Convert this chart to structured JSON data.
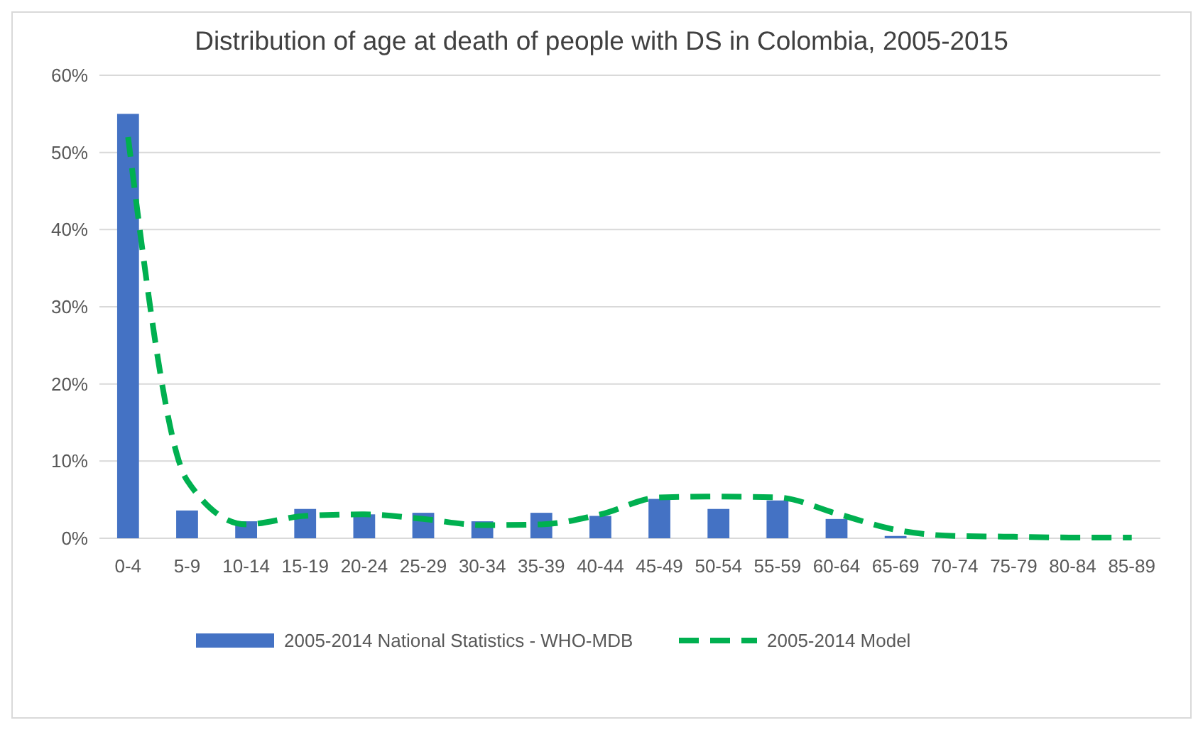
{
  "chart_data": {
    "type": "bar",
    "title": "Distribution of age at death of people with DS in Colombia, 2005-2015",
    "categories": [
      "0-4",
      "5-9",
      "10-14",
      "15-19",
      "20-24",
      "25-29",
      "30-34",
      "35-39",
      "40-44",
      "45-49",
      "50-54",
      "55-59",
      "60-64",
      "65-69",
      "70-74",
      "75-79",
      "80-84",
      "85-89"
    ],
    "series": [
      {
        "name": "2005-2014 National Statistics - WHO-MDB",
        "color": "#4472c4",
        "values": [
          55,
          3.6,
          2.2,
          3.8,
          3.1,
          3.3,
          2.2,
          3.3,
          2.9,
          5.1,
          3.8,
          4.9,
          2.5,
          0.3,
          0,
          0,
          0,
          0
        ]
      },
      {
        "name": "2005-2014 Model",
        "type": "line",
        "color": "#00b050",
        "line_style": "dashed",
        "values": [
          52,
          7.5,
          1.8,
          2.9,
          3.1,
          2.5,
          1.7,
          1.8,
          3.1,
          5.3,
          5.4,
          5.3,
          3.2,
          1.1,
          0.3,
          0.2,
          0.1,
          0.1
        ]
      }
    ],
    "ylim": [
      0,
      60
    ],
    "yticks": [
      {
        "value": 0,
        "label": "0%"
      },
      {
        "value": 10,
        "label": "10%"
      },
      {
        "value": 20,
        "label": "20%"
      },
      {
        "value": 30,
        "label": "30%"
      },
      {
        "value": 40,
        "label": "40%"
      },
      {
        "value": 50,
        "label": "50%"
      },
      {
        "value": 60,
        "label": "60%"
      }
    ],
    "grid": "y",
    "legend": "bottom",
    "marker": "none"
  }
}
